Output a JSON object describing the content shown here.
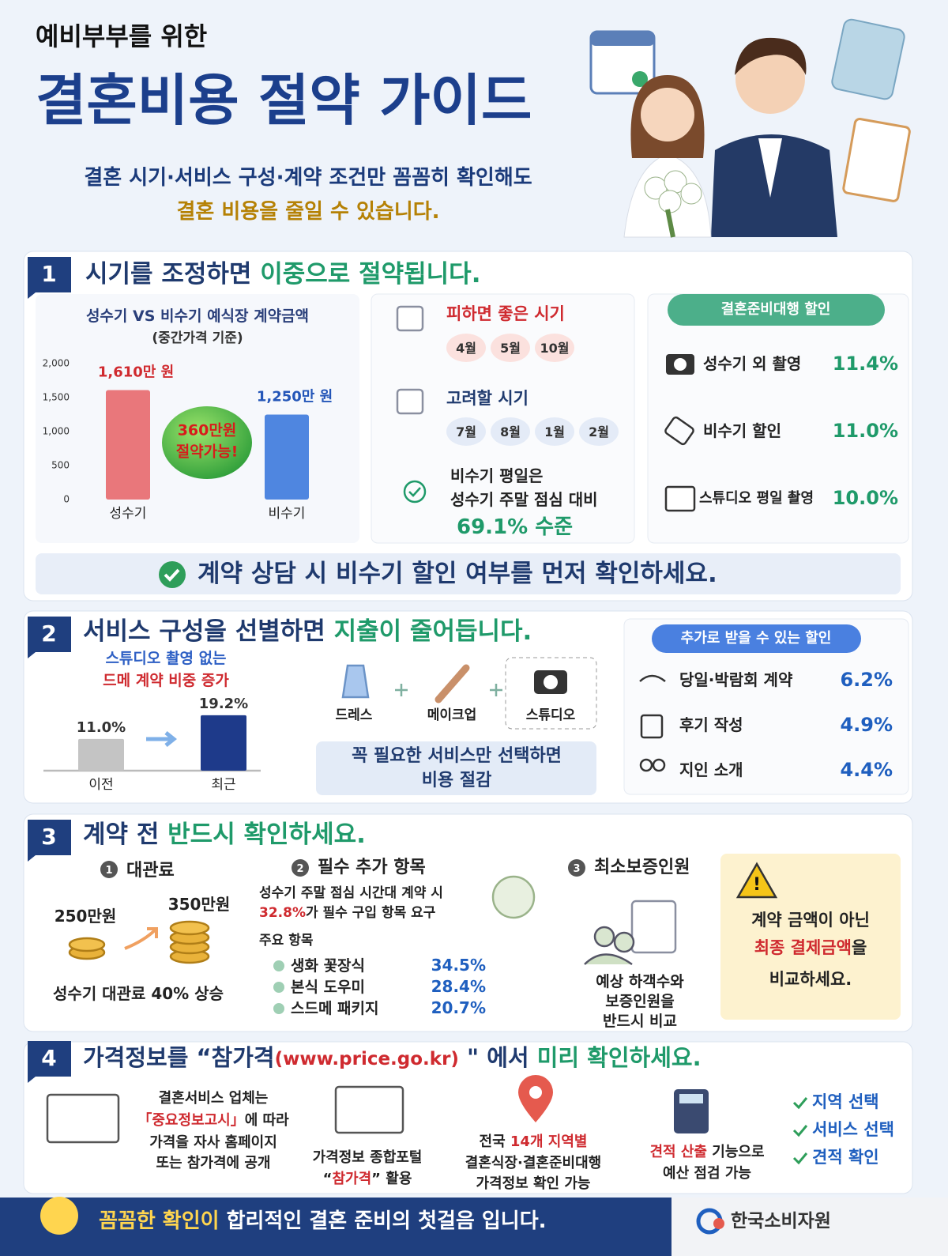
{
  "header": {
    "kicker": "예비부부를 위한",
    "title": "결혼비용 절약 가이드",
    "subtitle_1": "결혼 시기·서비스 구성·계약 조건만 꼼꼼히 확인해도",
    "subtitle_2": "결혼 비용을 줄일 수 있습니다."
  },
  "chart_data": [
    {
      "type": "bar",
      "title": "성수기 VS 비수기 예식장 계약금액",
      "subtitle": "(중간가격 기준)",
      "categories": [
        "성수기",
        "비수기"
      ],
      "values": [
        1610,
        1250
      ],
      "value_labels": [
        "1,610만 원",
        "1,250만 원"
      ],
      "colors": [
        "#e9777b",
        "#4f86e0"
      ],
      "label_colors": [
        "#d02a2f",
        "#2456b8"
      ],
      "ylim": [
        0,
        2000
      ],
      "yticks": [
        0,
        500,
        {
          "value": 1000,
          "label": "1,000"
        },
        {
          "value": 1500,
          "label": "1,500"
        },
        {
          "value": 2000,
          "label": "2,000"
        }
      ],
      "annotation": [
        "360만원",
        "절약가능!"
      ]
    },
    {
      "type": "bar",
      "title": "스튜디오 촬영 없는",
      "subtitle": "드메 계약 비중 증가",
      "categories": [
        "이전",
        "최근"
      ],
      "values": [
        11.0,
        19.2
      ],
      "value_labels": [
        "11.0%",
        "19.2%"
      ],
      "colors": [
        "#c4c4c4",
        "#1e3a8a"
      ]
    }
  ],
  "section1": {
    "number": 1,
    "title": [
      "시기를 조정하면 ",
      "이중으로 절약됩니다."
    ],
    "avoid": {
      "label": "피하면 좋은 시기",
      "months": [
        "4월",
        "5월",
        "10월"
      ]
    },
    "consider": {
      "label": "고려할 시기",
      "months": [
        "7월",
        "8월",
        "1월",
        "2월"
      ]
    },
    "weekday_note": [
      "비수기 평일은",
      "성수기 주말 점심 대비",
      "69.1% 수준"
    ],
    "agency": {
      "title": "결혼준비대행 할인",
      "items": [
        {
          "label": "성수기 외 촬영",
          "value": "11.4%"
        },
        {
          "label": "비수기 할인",
          "value": "11.0%"
        },
        {
          "label": "스튜디오 평일 촬영",
          "value": "10.0%"
        }
      ]
    },
    "banner": "계약 상담 시 비수기 할인 여부를 먼저 확인하세요."
  },
  "section2": {
    "number": 2,
    "title": [
      "서비스 구성을 선별하면 ",
      "지출이 줄어듭니다."
    ],
    "services": [
      "드레스",
      "메이크업",
      "스튜디오"
    ],
    "note": [
      "꼭 필요한 서비스만 선택하면",
      "비용 절감"
    ],
    "discounts": {
      "title": "추가로 받을 수 있는 할인",
      "items": [
        {
          "label": "당일·박람회 계약",
          "value": "6.2%"
        },
        {
          "label": "후기 작성",
          "value": "4.9%"
        },
        {
          "label": "지인 소개",
          "value": "4.4%"
        }
      ]
    }
  },
  "section3": {
    "number": 3,
    "title": [
      "계약 전 ",
      "반드시 확인하세요."
    ],
    "venue": {
      "marker": 1,
      "label": "대관료",
      "before": "250만원",
      "after": "350만원",
      "note": "성수기 대관료 40% 상승"
    },
    "required": {
      "marker": 2,
      "label": "필수 추가 항목",
      "line_1": "성수기 주말 점심 시간대 계약 시",
      "line_2": [
        "32.8%",
        "가 필수 구입 항목 요구"
      ],
      "items_label": "주요 항목",
      "items": [
        {
          "label": "생화 꽃장식",
          "value": "34.5%"
        },
        {
          "label": "본식 도우미",
          "value": "28.4%"
        },
        {
          "label": "스드메 패키지",
          "value": "20.7%"
        }
      ]
    },
    "guarantee": {
      "marker": 3,
      "label": "최소보증인원",
      "note": [
        "예상 하객수와",
        "보증인원을",
        "반드시 비교"
      ]
    },
    "warning": {
      "symbol": "!",
      "line_1": "계약 금액이 아닌",
      "line_2": [
        "최종 결제금액",
        "을"
      ],
      "line_3": "비교하세요."
    }
  },
  "section4": {
    "number": 4,
    "title": [
      "가격정보를 “참가격",
      "(www.price.go.kr)",
      " \" 에서 ",
      "미리 확인하세요."
    ],
    "disclosure": {
      "line_1": "결혼서비스 업체는",
      "line_2": [
        "「중요정보고시」",
        "에 따라"
      ],
      "line_3": "가격을 자사 홈페이지",
      "line_4": "또는 참가격에 공개"
    },
    "portal": {
      "line_1": "가격정보 종합포털",
      "line_2": [
        "“",
        "참가격",
        "” 활용"
      ]
    },
    "regions": {
      "line_1": [
        "전국 ",
        "14개 지역별"
      ],
      "line_2": "결혼식장·결혼준비대행",
      "line_3": "가격정보 확인 가능"
    },
    "estimate": {
      "line_1": [
        "견적 산출",
        " 기능으로"
      ],
      "line_2": "예산 점검 가능"
    },
    "steps": [
      "지역 선택",
      "서비스 선택",
      "견적 확인"
    ]
  },
  "footer": {
    "message": [
      "꼼꼼한 확인이",
      " 합리적인 결혼 준비의 첫걸음 입니다."
    ],
    "org": "한국소비자원"
  }
}
